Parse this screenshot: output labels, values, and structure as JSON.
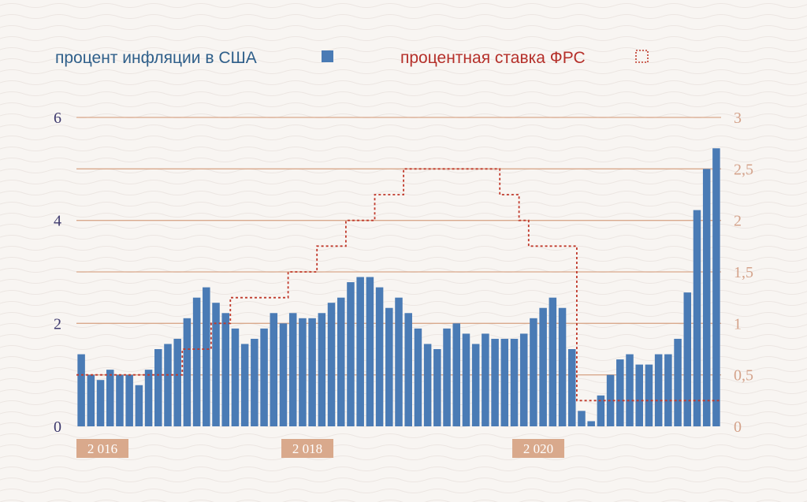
{
  "chart_data": {
    "type": "bar",
    "series": [
      {
        "name": "процент инфляции в США",
        "axis": "left",
        "kind": "bar",
        "values": [
          1.4,
          1.0,
          0.9,
          1.1,
          1.0,
          1.0,
          0.8,
          1.1,
          1.5,
          1.6,
          1.7,
          2.1,
          2.5,
          2.7,
          2.4,
          2.2,
          1.9,
          1.6,
          1.7,
          1.9,
          2.2,
          2.0,
          2.2,
          2.1,
          2.1,
          2.2,
          2.4,
          2.5,
          2.8,
          2.9,
          2.9,
          2.7,
          2.3,
          2.5,
          2.2,
          1.9,
          1.6,
          1.5,
          1.9,
          2.0,
          1.8,
          1.6,
          1.8,
          1.7,
          1.7,
          1.7,
          1.8,
          2.1,
          2.3,
          2.5,
          2.3,
          1.5,
          0.3,
          0.1,
          0.6,
          1.0,
          1.3,
          1.4,
          1.2,
          1.2,
          1.4,
          1.4,
          1.7,
          2.6,
          4.2,
          5.0,
          5.4
        ]
      },
      {
        "name": "процентная ставка ФРС",
        "axis": "right",
        "kind": "step",
        "values": [
          0.5,
          0.5,
          0.5,
          0.5,
          0.5,
          0.5,
          0.5,
          0.5,
          0.5,
          0.5,
          0.5,
          0.75,
          0.75,
          0.75,
          1.0,
          1.0,
          1.25,
          1.25,
          1.25,
          1.25,
          1.25,
          1.25,
          1.5,
          1.5,
          1.5,
          1.75,
          1.75,
          1.75,
          2.0,
          2.0,
          2.0,
          2.25,
          2.25,
          2.25,
          2.5,
          2.5,
          2.5,
          2.5,
          2.5,
          2.5,
          2.5,
          2.5,
          2.5,
          2.5,
          2.25,
          2.25,
          2.0,
          1.75,
          1.75,
          1.75,
          1.75,
          1.75,
          0.25,
          0.25,
          0.25,
          0.25,
          0.25,
          0.25,
          0.25,
          0.25,
          0.25,
          0.25,
          0.25,
          0.25,
          0.25,
          0.25,
          0.25
        ]
      }
    ],
    "left_axis": {
      "ylim": [
        0,
        6
      ],
      "ticks": [
        0,
        2,
        4,
        6
      ],
      "tick_labels": [
        "0",
        "2",
        "4",
        "6"
      ]
    },
    "right_axis": {
      "ylim": [
        0,
        3
      ],
      "ticks": [
        0,
        0.5,
        1,
        1.5,
        2,
        2.5,
        3
      ],
      "tick_labels": [
        "0",
        "0,5",
        "1",
        "1,5",
        "2",
        "2,5",
        "3"
      ]
    },
    "x_labels": [
      {
        "label": "2 016",
        "index": 2
      },
      {
        "label": "2 018",
        "index": 24
      },
      {
        "label": "2 020",
        "index": 48
      }
    ],
    "grid": "horizontal",
    "legend_placement": "top",
    "colors": {
      "bars": "#4a7bb5",
      "rate_line": "#c0392b",
      "grid": "#d9a98c",
      "left_ticks": "#3e3a6e",
      "right_ticks": "#d4a28a",
      "year_label_bg": "#d9a98c",
      "legend_left_text": "#2f5f8a",
      "legend_right_text": "#b5302a"
    }
  }
}
